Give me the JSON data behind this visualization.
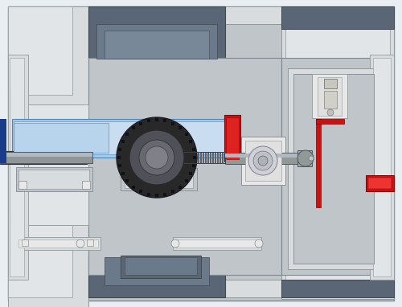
{
  "bg_color": "#e8eef2",
  "frame_gray": "#c8cdd2",
  "body_gray": "#c0c5ca",
  "light_gray": "#d8dcdf",
  "lighter_gray": "#e2e5e8",
  "dark_slate": "#5a6575",
  "med_gray": "#909598",
  "dark_gray": "#404548",
  "blue_fill": "#a8c8e8",
  "blue_light": "#c8ddf0",
  "red_accent": "#cc1111",
  "white_fill": "#f0f0f0",
  "near_white": "#e8e8e8",
  "black_gear": "#282828",
  "dark_gear": "#383838",
  "shaft_gray": "#909898",
  "hatch_dark": "#404040",
  "hatch_light": "#686868",
  "left_blue_bar": "#1a3a8a",
  "right_panel_bg": "#c8cdd2",
  "bearing_white": "#e8e8e8",
  "copper_detail": "#b08848"
}
